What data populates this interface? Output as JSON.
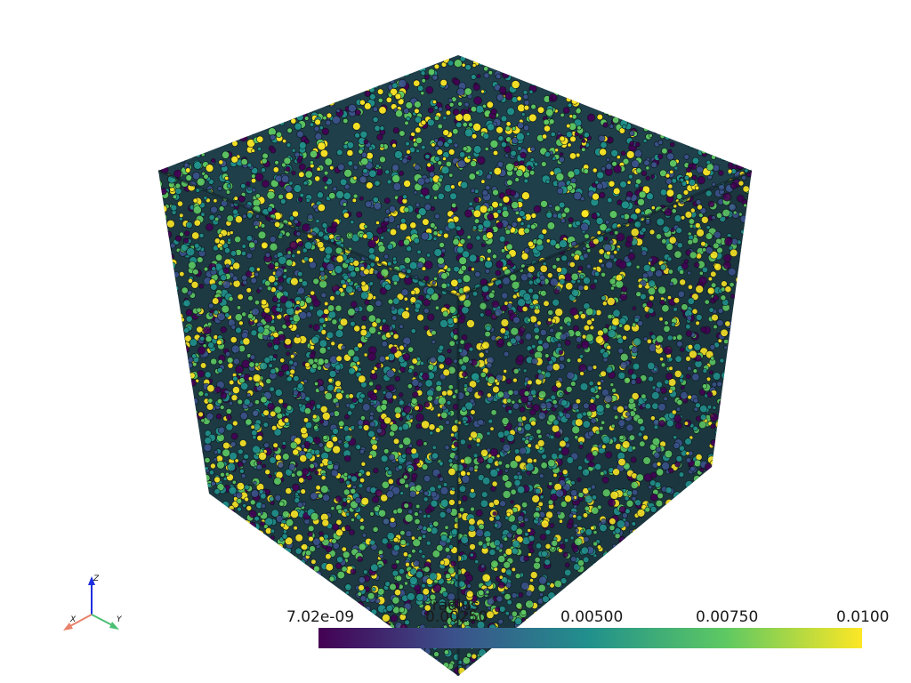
{
  "scene": {
    "object": "particle-packing-cube",
    "scalar": "radius"
  },
  "colorbar": {
    "title": "radius",
    "ticks": [
      "7.02e-09",
      "0.00250",
      "0.00500",
      "0.00750",
      "0.0100"
    ],
    "colormap": [
      "#440154",
      "#3b528b",
      "#21918c",
      "#5ec962",
      "#fde725"
    ]
  },
  "orientation_axes": {
    "x_label": "X",
    "y_label": "Y",
    "z_label": "Z",
    "x_color": "#e8826b",
    "y_color": "#4cbf75",
    "z_color": "#1d2fe0"
  }
}
